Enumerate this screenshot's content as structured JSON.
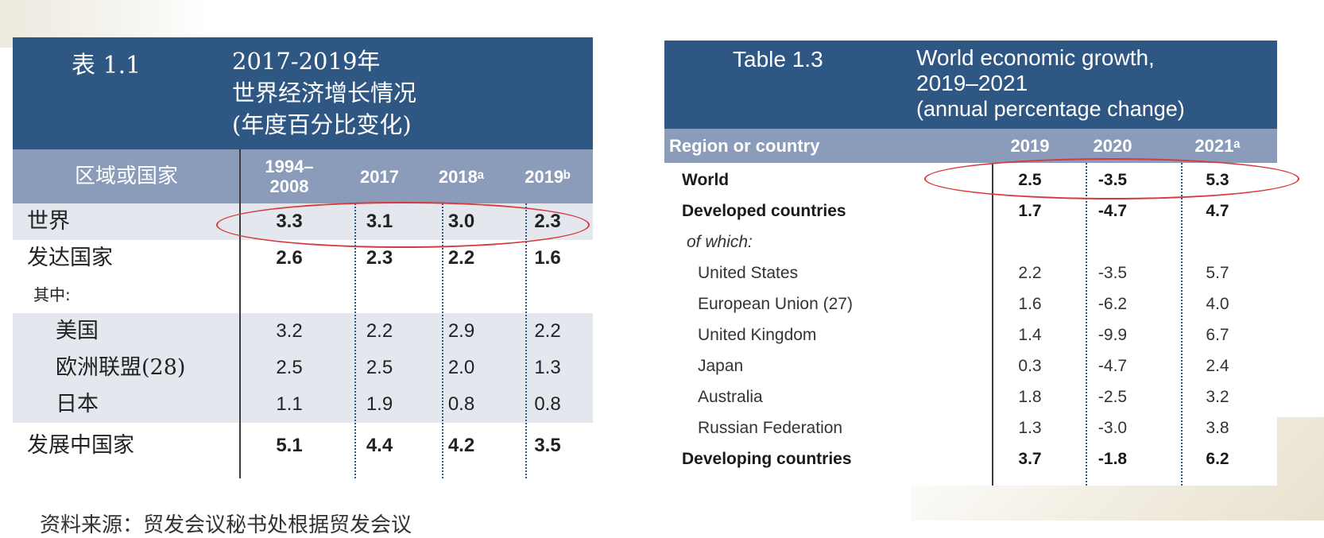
{
  "table_left": {
    "number": "表 1.1",
    "title_lines": [
      "2017-2019年",
      "世界经济增长情况",
      "(年度百分比变化)"
    ],
    "headers": {
      "region": "区域或国家",
      "c1": "1994–2008",
      "c2": "2017",
      "c3": "2018ᵃ",
      "c4": "2019ᵇ"
    },
    "rows": [
      {
        "label": "世界",
        "v1": "3.3",
        "v2": "3.1",
        "v3": "3.0",
        "v4": "2.3"
      },
      {
        "label": "发达国家",
        "v1": "2.6",
        "v2": "2.3",
        "v3": "2.2",
        "v4": "1.6"
      },
      {
        "label": "其中:"
      },
      {
        "label": "美国",
        "v1": "3.2",
        "v2": "2.2",
        "v3": "2.9",
        "v4": "2.2"
      },
      {
        "label": "欧洲联盟(28)",
        "v1": "2.5",
        "v2": "2.5",
        "v3": "2.0",
        "v4": "1.3"
      },
      {
        "label": "日本",
        "v1": "1.1",
        "v2": "1.9",
        "v3": "0.8",
        "v4": "0.8"
      },
      {
        "label": "发展中国家",
        "v1": "5.1",
        "v2": "4.4",
        "v3": "4.2",
        "v4": "3.5"
      }
    ]
  },
  "table_right": {
    "number": "Table 1.3",
    "title_lines": [
      "World economic growth,",
      "2019–2021",
      "(annual percentage change)"
    ],
    "headers": {
      "region": "Region or country",
      "c1": "2019",
      "c2": "2020",
      "c3": "2021ᵃ"
    },
    "rows": [
      {
        "label": "World",
        "v1": "2.5",
        "v2": "-3.5",
        "v3": "5.3"
      },
      {
        "label": "Developed countries",
        "v1": "1.7",
        "v2": "-4.7",
        "v3": "4.7"
      },
      {
        "label": "of which:"
      },
      {
        "label": "United States",
        "v1": "2.2",
        "v2": "-3.5",
        "v3": "5.7"
      },
      {
        "label": "European Union (27)",
        "v1": "1.6",
        "v2": "-6.2",
        "v3": "4.0"
      },
      {
        "label": "United Kingdom",
        "v1": "1.4",
        "v2": "-9.9",
        "v3": "6.7"
      },
      {
        "label": "Japan",
        "v1": "0.3",
        "v2": "-4.7",
        "v3": "2.4"
      },
      {
        "label": "Australia",
        "v1": "1.8",
        "v2": "-2.5",
        "v3": "3.2"
      },
      {
        "label": "Russian Federation",
        "v1": "1.3",
        "v2": "-3.0",
        "v3": "3.8"
      },
      {
        "label": "Developing countries",
        "v1": "3.7",
        "v2": "-1.8",
        "v3": "6.2"
      }
    ]
  },
  "footnote": "资料来源：贸发会议秘书处根据贸发会议",
  "colors": {
    "header_blue": "#2f5784",
    "subheader": "#8a9cb9",
    "highlight_red": "#d63a3a",
    "row_shade": "#e4e7ee"
  }
}
